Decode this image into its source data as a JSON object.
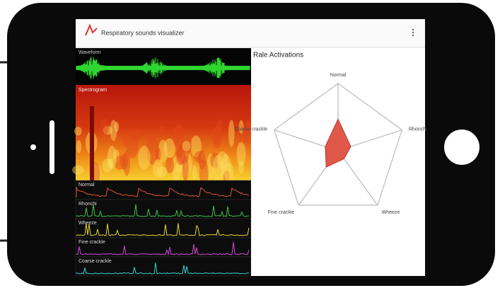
{
  "app": {
    "title": "Respiratory sounds visualizer",
    "panels": {
      "waveform": "Waveform",
      "spectrogram": "Spectrogram"
    },
    "tracks": [
      "Normal",
      "Rhonchi",
      "Wheeze",
      "Fine crackle",
      "Coarse crackle"
    ]
  },
  "chart_data": {
    "type": "radar",
    "title": "Rale Activations",
    "categories": [
      "Normal",
      "Rhonchi",
      "Wheeze",
      "Fine crackle",
      "Coarse crackle"
    ],
    "values": [
      0.47,
      0.2,
      0.15,
      0.3,
      0.2
    ],
    "color": "#e0584a",
    "rlim": [
      0,
      1
    ]
  }
}
